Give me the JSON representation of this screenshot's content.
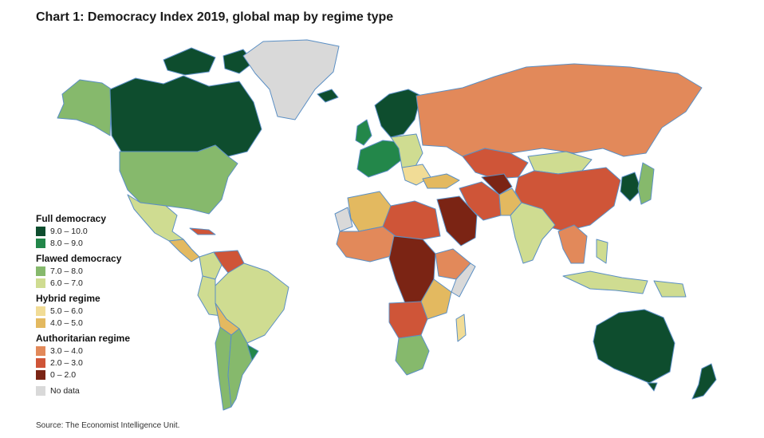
{
  "title": "Chart 1: Democracy Index 2019, global map by regime type",
  "source": "Source: The Economist Intelligence Unit.",
  "colors": {
    "full_9_10": "#0e4d2e",
    "full_8_9": "#23874a",
    "flawed_7_8": "#86b96c",
    "flawed_6_7": "#cfdc91",
    "hybrid_5_6": "#f1dc96",
    "hybrid_4_5": "#e3b960",
    "auth_3_4": "#e2895a",
    "auth_2_3": "#cf5538",
    "auth_0_2": "#7b2414",
    "no_data": "#d9d9d9",
    "ocean": "#ffffff",
    "border": "#5b8fc4"
  },
  "legend": {
    "groups": [
      {
        "title": "Full democracy",
        "items": [
          {
            "label": "9.0 – 10.0",
            "color": "#0e4d2e"
          },
          {
            "label": "8.0 – 9.0",
            "color": "#23874a"
          }
        ]
      },
      {
        "title": "Flawed democracy",
        "items": [
          {
            "label": "7.0 – 8.0",
            "color": "#86b96c"
          },
          {
            "label": "6.0 – 7.0",
            "color": "#cfdc91"
          }
        ]
      },
      {
        "title": "Hybrid regime",
        "items": [
          {
            "label": "5.0 – 6.0",
            "color": "#f1dc96"
          },
          {
            "label": "4.0 – 5.0",
            "color": "#e3b960"
          }
        ]
      },
      {
        "title": "Authoritarian regime",
        "items": [
          {
            "label": "3.0 – 4.0",
            "color": "#e2895a"
          },
          {
            "label": "2.0 – 3.0",
            "color": "#cf5538"
          },
          {
            "label": "0 – 2.0",
            "color": "#7b2414"
          }
        ]
      }
    ],
    "no_data": {
      "label": "No data",
      "color": "#d9d9d9"
    }
  }
}
